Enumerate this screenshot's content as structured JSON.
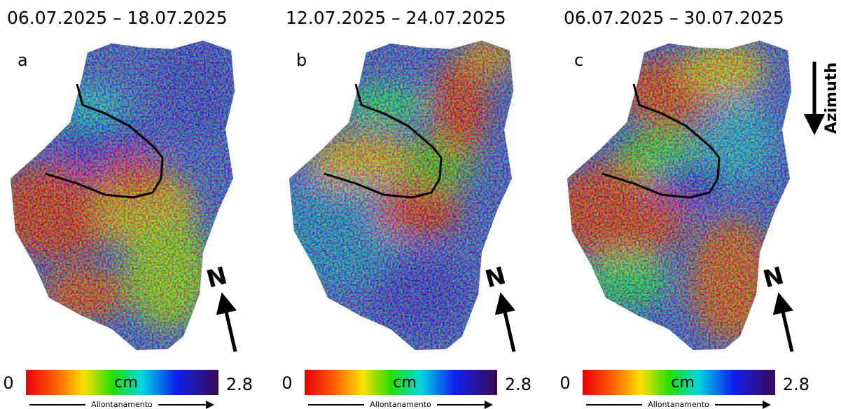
{
  "panels": [
    {
      "dates": "06.07.2025 – 18.07.2025",
      "letter": "a",
      "north": "N",
      "colorbar": {
        "min": 0,
        "max": 2.8,
        "unit": "cm",
        "direction": "Allontanamento"
      }
    },
    {
      "dates": "12.07.2025 – 24.07.2025",
      "letter": "b",
      "north": "N",
      "colorbar": {
        "min": 0,
        "max": 2.8,
        "unit": "cm",
        "direction": "Allontanamento"
      }
    },
    {
      "dates": "06.07.2025 – 30.07.2025",
      "letter": "c",
      "north": "N",
      "colorbar": {
        "min": 0,
        "max": 2.8,
        "unit": "cm",
        "direction": "Allontanamento"
      }
    }
  ],
  "azimuth": "Azimuth"
}
